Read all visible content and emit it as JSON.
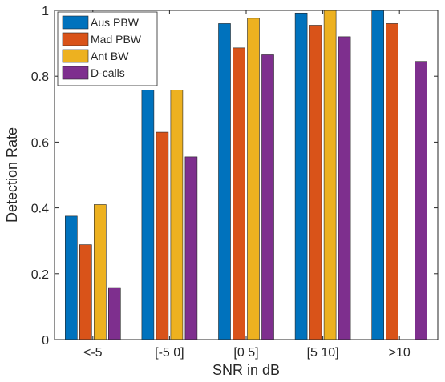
{
  "chart_data": {
    "type": "bar",
    "xlabel": "SNR in dB",
    "ylabel": "Detection Rate",
    "ylim": [
      0,
      1
    ],
    "yticks": [
      0,
      0.2,
      0.4,
      0.6,
      0.8,
      1
    ],
    "ytick_labels": [
      "0",
      "0.2",
      "0.4",
      "0.6",
      "0.8",
      "1"
    ],
    "categories": [
      "<-5",
      "[-5 0]",
      "[0 5]",
      "[5 10]",
      ">10"
    ],
    "series": [
      {
        "name": "Aus PBW",
        "color": "#0072BD",
        "values": [
          0.375,
          0.758,
          0.96,
          0.992,
          1.0
        ]
      },
      {
        "name": "Mad PBW",
        "color": "#D95319",
        "values": [
          0.288,
          0.63,
          0.886,
          0.955,
          0.96
        ]
      },
      {
        "name": "Ant BW",
        "color": "#EDB120",
        "values": [
          0.41,
          0.758,
          0.976,
          1.0,
          0.0
        ]
      },
      {
        "name": "D-calls",
        "color": "#7E2F8E",
        "values": [
          0.158,
          0.555,
          0.865,
          0.92,
          0.845
        ]
      }
    ],
    "legend_position": "top-left",
    "grid": false,
    "box": true
  }
}
